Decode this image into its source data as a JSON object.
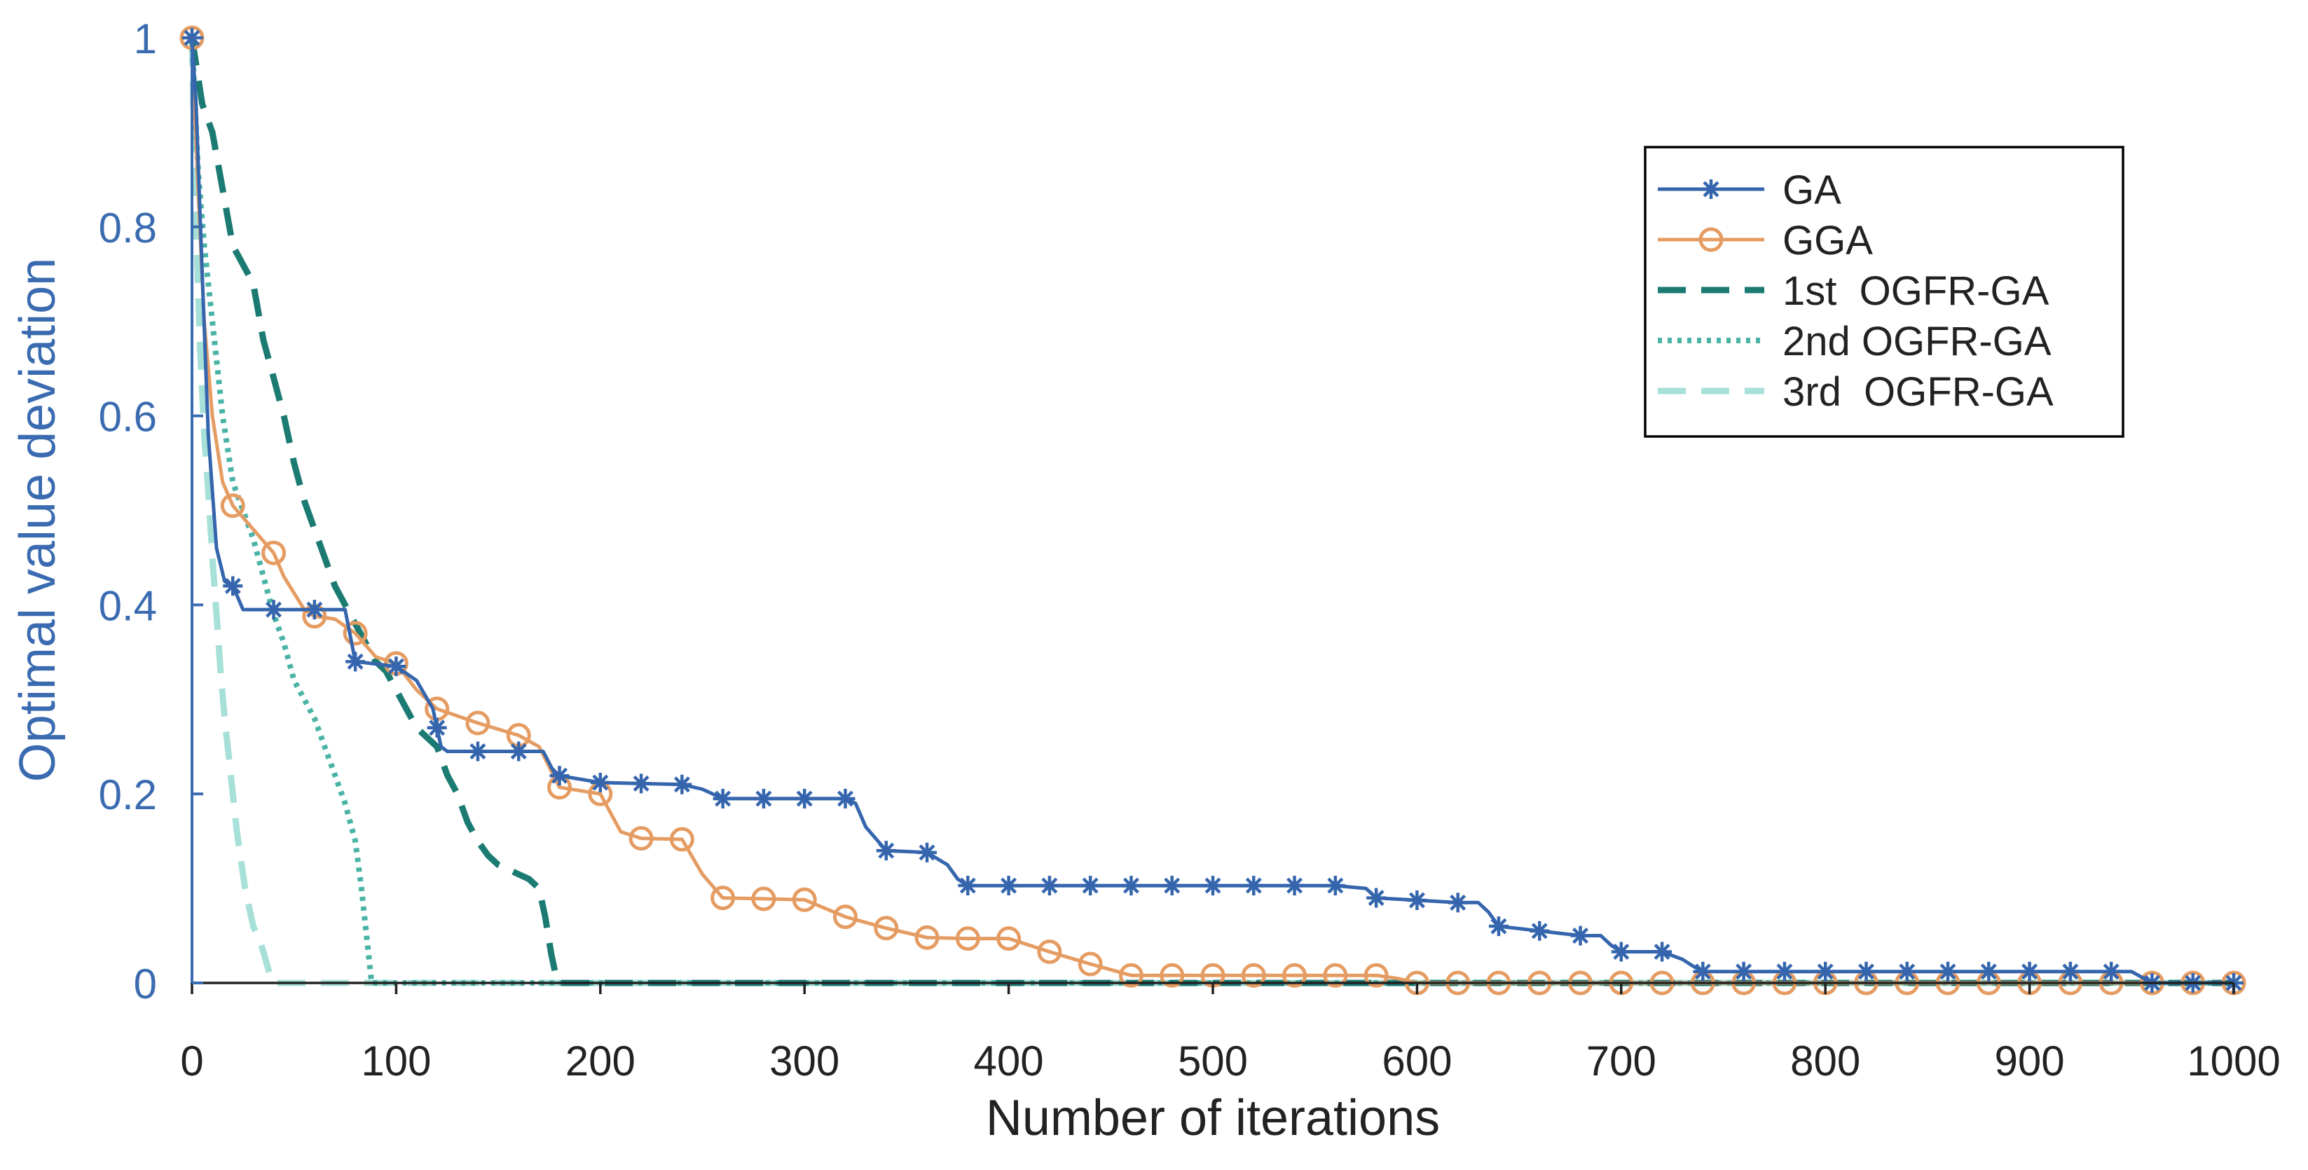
{
  "colors": {
    "ga": "#3465ad",
    "gga": "#e59c62",
    "first": "#1b7b73",
    "second": "#49b3a6",
    "third": "#a6e0d8",
    "y_axis": "#3a6bb0",
    "x_axis": "#222222"
  },
  "chart_data": {
    "type": "line",
    "title": "",
    "xlabel": "Number of iterations",
    "ylabel": "Optimal value deviation",
    "xlim": [
      0,
      1000
    ],
    "ylim": [
      0,
      1
    ],
    "x_ticks": [
      0,
      100,
      200,
      300,
      400,
      500,
      600,
      700,
      800,
      900,
      1000
    ],
    "y_ticks": [
      0,
      0.2,
      0.4,
      0.6,
      0.8,
      1
    ],
    "x_tick_labels": [
      "0",
      "100",
      "200",
      "300",
      "400",
      "500",
      "600",
      "700",
      "800",
      "900",
      "1000"
    ],
    "y_tick_labels": [
      "0",
      "0.2",
      "0.4",
      "0.6",
      "0.8",
      "1"
    ],
    "legend_position": "top-right",
    "series": [
      {
        "name": "GA",
        "color_key": "ga",
        "style": "solid",
        "marker": "star",
        "marker_every": 20,
        "x": [
          0,
          2,
          5,
          8,
          12,
          16,
          20,
          25,
          30,
          40,
          50,
          60,
          75,
          80,
          100,
          110,
          118,
          122,
          125,
          140,
          160,
          172,
          178,
          200,
          240,
          250,
          260,
          320,
          325,
          330,
          340,
          360,
          370,
          375,
          380,
          460,
          560,
          575,
          580,
          620,
          630,
          635,
          640,
          680,
          690,
          695,
          700,
          720,
          730,
          735,
          740,
          940,
          950,
          955,
          960,
          1000
        ],
        "y": [
          1,
          0.93,
          0.75,
          0.58,
          0.46,
          0.425,
          0.42,
          0.395,
          0.395,
          0.395,
          0.395,
          0.395,
          0.395,
          0.34,
          0.335,
          0.32,
          0.29,
          0.25,
          0.245,
          0.245,
          0.245,
          0.245,
          0.22,
          0.212,
          0.21,
          0.205,
          0.195,
          0.195,
          0.19,
          0.165,
          0.14,
          0.138,
          0.125,
          0.11,
          0.103,
          0.103,
          0.103,
          0.1,
          0.09,
          0.085,
          0.085,
          0.075,
          0.06,
          0.05,
          0.05,
          0.04,
          0.033,
          0.033,
          0.025,
          0.018,
          0.012,
          0.012,
          0.012,
          0.006,
          0,
          0
        ]
      },
      {
        "name": "GGA",
        "color_key": "gga",
        "style": "solid",
        "marker": "circle",
        "marker_every": 20,
        "x": [
          0,
          3,
          6,
          10,
          15,
          20,
          30,
          40,
          45,
          55,
          60,
          70,
          80,
          90,
          100,
          110,
          120,
          140,
          160,
          170,
          180,
          200,
          210,
          220,
          240,
          250,
          260,
          280,
          300,
          320,
          340,
          360,
          380,
          400,
          420,
          440,
          460,
          580,
          590,
          600,
          1000
        ],
        "y": [
          1,
          0.84,
          0.7,
          0.6,
          0.53,
          0.505,
          0.48,
          0.455,
          0.43,
          0.395,
          0.388,
          0.385,
          0.37,
          0.345,
          0.338,
          0.31,
          0.29,
          0.275,
          0.262,
          0.25,
          0.207,
          0.2,
          0.16,
          0.153,
          0.152,
          0.115,
          0.09,
          0.089,
          0.088,
          0.07,
          0.058,
          0.048,
          0.047,
          0.047,
          0.033,
          0.02,
          0.008,
          0.008,
          0.005,
          0,
          0
        ]
      },
      {
        "name": "1st  OGFR-GA",
        "color_key": "first",
        "style": "dash",
        "marker": "none",
        "x": [
          0,
          5,
          10,
          15,
          20,
          25,
          30,
          35,
          40,
          45,
          50,
          55,
          60,
          65,
          70,
          75,
          80,
          85,
          90,
          95,
          100,
          105,
          110,
          115,
          120,
          125,
          130,
          135,
          140,
          145,
          150,
          155,
          160,
          165,
          170,
          173,
          176,
          178,
          179,
          180,
          1000
        ],
        "y": [
          1,
          0.93,
          0.9,
          0.84,
          0.78,
          0.76,
          0.74,
          0.68,
          0.64,
          0.6,
          0.55,
          0.51,
          0.48,
          0.45,
          0.42,
          0.4,
          0.38,
          0.36,
          0.34,
          0.33,
          0.31,
          0.29,
          0.27,
          0.26,
          0.25,
          0.22,
          0.2,
          0.17,
          0.15,
          0.135,
          0.125,
          0.12,
          0.115,
          0.11,
          0.1,
          0.07,
          0.03,
          0.01,
          0.002,
          0,
          0
        ]
      },
      {
        "name": "2nd OGFR-GA",
        "color_key": "second",
        "style": "dot",
        "marker": "none",
        "x": [
          0,
          3,
          6,
          10,
          15,
          20,
          25,
          30,
          35,
          40,
          45,
          50,
          55,
          60,
          65,
          70,
          75,
          80,
          83,
          85,
          87,
          88,
          1000
        ],
        "y": [
          1,
          0.86,
          0.78,
          0.7,
          0.6,
          0.53,
          0.5,
          0.47,
          0.43,
          0.39,
          0.36,
          0.32,
          0.3,
          0.28,
          0.25,
          0.22,
          0.19,
          0.15,
          0.1,
          0.06,
          0.02,
          0,
          0
        ]
      },
      {
        "name": "3rd  OGFR-GA",
        "color_key": "third",
        "style": "dash",
        "marker": "none",
        "x": [
          0,
          2,
          4,
          6,
          8,
          10,
          12,
          14,
          16,
          18,
          20,
          22,
          24,
          26,
          28,
          30,
          32,
          34,
          36,
          38,
          40,
          1000
        ],
        "y": [
          1,
          0.8,
          0.67,
          0.58,
          0.52,
          0.45,
          0.39,
          0.33,
          0.28,
          0.24,
          0.2,
          0.16,
          0.13,
          0.1,
          0.08,
          0.06,
          0.05,
          0.04,
          0.025,
          0.01,
          0,
          0
        ]
      }
    ]
  }
}
